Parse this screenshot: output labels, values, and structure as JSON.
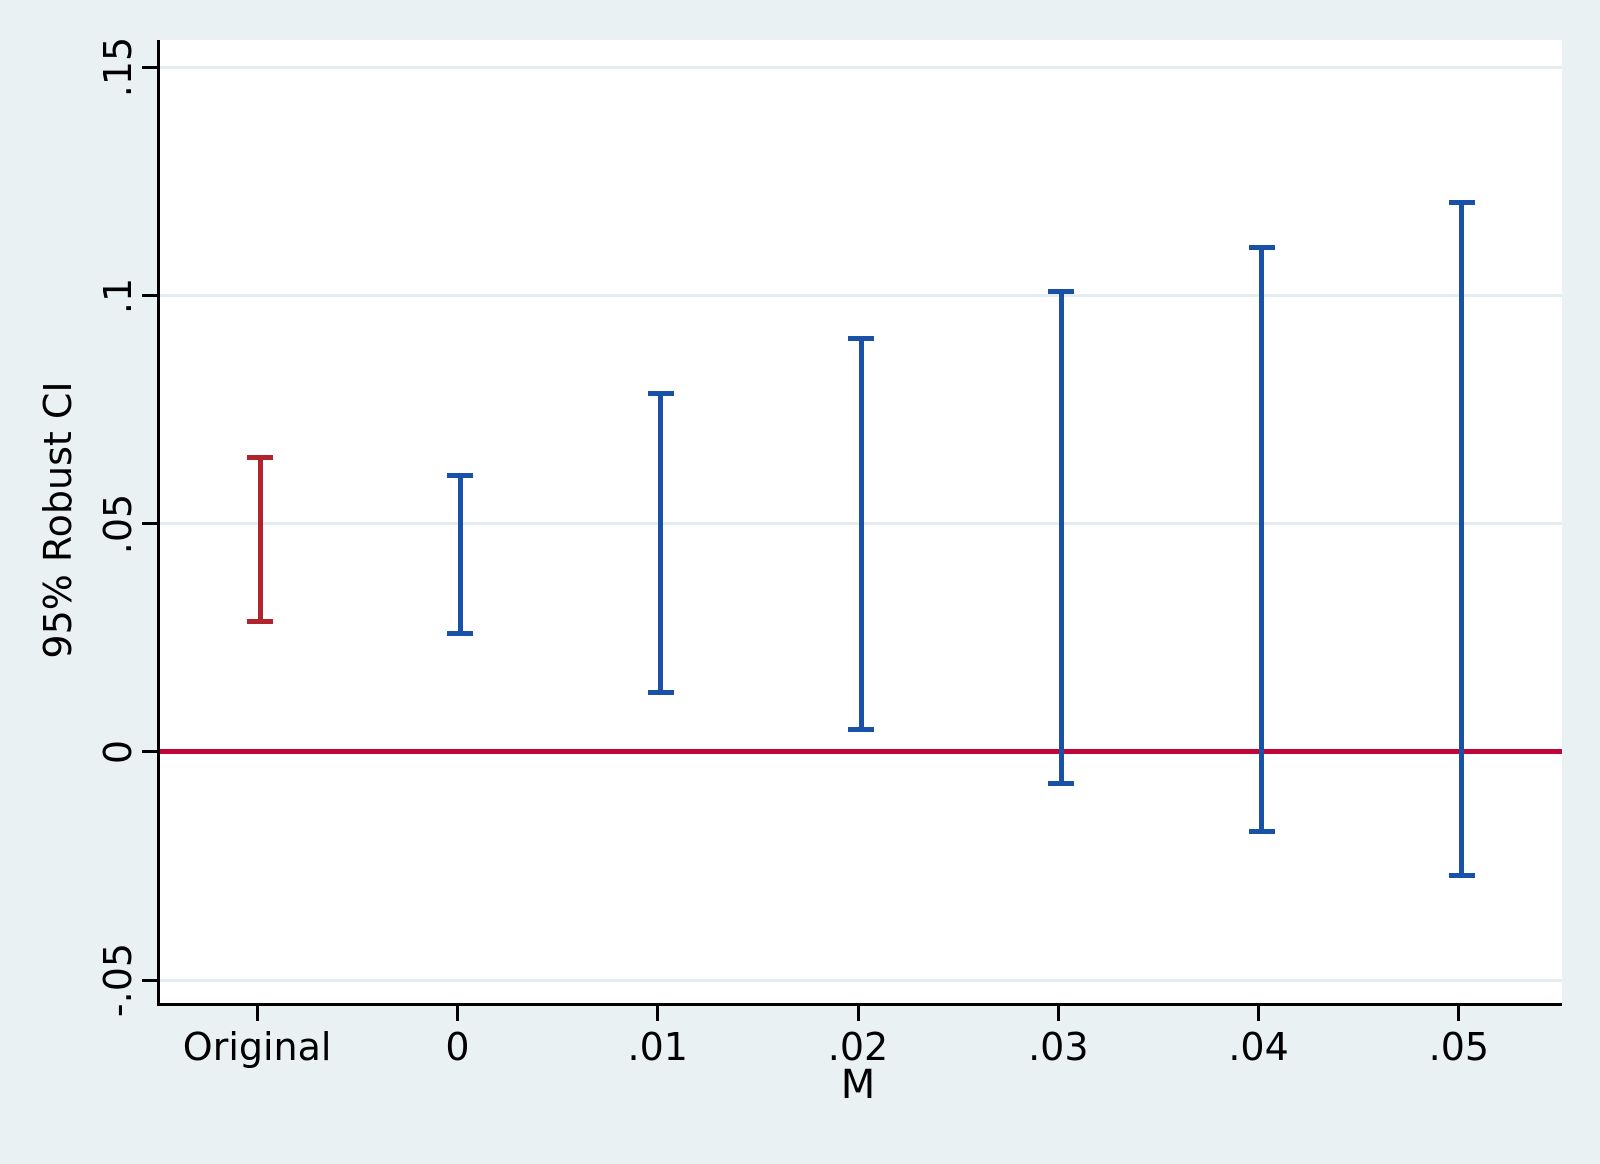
{
  "chart_data": {
    "type": "errorbar",
    "title": "",
    "xlabel": "M",
    "ylabel": "95% Robust CI",
    "categories": [
      "Original",
      "0",
      ".01",
      ".02",
      ".03",
      ".04",
      ".05"
    ],
    "intervals": [
      {
        "category": "Original",
        "low": 0.0285,
        "high": 0.0645,
        "color_key": "original"
      },
      {
        "category": "0",
        "low": 0.026,
        "high": 0.0605,
        "color_key": "series"
      },
      {
        "category": ".01",
        "low": 0.013,
        "high": 0.0785,
        "color_key": "series"
      },
      {
        "category": ".02",
        "low": 0.005,
        "high": 0.0905,
        "color_key": "series"
      },
      {
        "category": ".03",
        "low": -0.007,
        "high": 0.101,
        "color_key": "series"
      },
      {
        "category": ".04",
        "low": -0.0175,
        "high": 0.1105,
        "color_key": "series"
      },
      {
        "category": ".05",
        "low": -0.027,
        "high": 0.1205,
        "color_key": "series"
      }
    ],
    "yticks": [
      -0.05,
      0,
      0.05,
      0.1,
      0.15
    ],
    "ytick_labels": [
      "-.05",
      "0",
      ".05",
      ".1",
      ".15"
    ],
    "ylim": [
      -0.055,
      0.156
    ],
    "zero_line_y": 0,
    "grid": "horizontal",
    "legend": "none"
  },
  "colors": {
    "background": "#eaf1f3",
    "plot_background": "#ffffff",
    "gridline": "#e4eef1",
    "axis": "#000000",
    "zero_line": "#c10538",
    "original": "#b1232d",
    "series": "#1a51a8"
  }
}
